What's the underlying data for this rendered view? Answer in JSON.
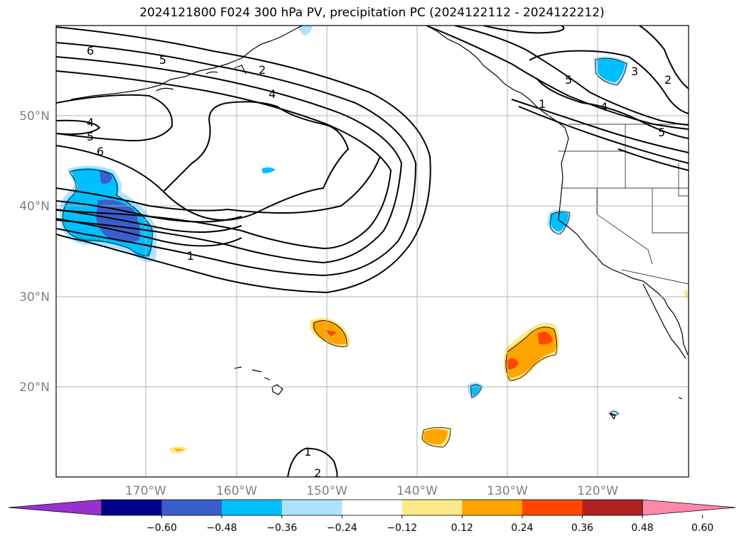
{
  "title": "2024121800 F024 300 hPa PV, precipitation PC (2024122112 - 2024122212)",
  "map": {
    "lon_ticks": [
      "170°W",
      "160°W",
      "150°W",
      "140°W",
      "130°W",
      "120°W"
    ],
    "lat_ticks": [
      "50°N",
      "40°N",
      "30°N",
      "20°N"
    ],
    "pv_contour_labels": [
      "6",
      "5",
      "4",
      "2",
      "4",
      "5",
      "6",
      "1",
      "1",
      "2",
      "3",
      "2",
      "5",
      "4",
      "5",
      "1"
    ],
    "colors": {
      "contour": "#000000",
      "grid": "#b0b0b0",
      "tick_text": "#808080"
    }
  },
  "colorbar": {
    "ticks": [
      "−0.60",
      "−0.48",
      "−0.36",
      "−0.24",
      "−0.12",
      "0.12",
      "0.24",
      "0.36",
      "0.48",
      "0.60"
    ],
    "colors": [
      "#9932cc",
      "#00008b",
      "#3a5fcd",
      "#00bfff",
      "#b0e2ff",
      "#ffffff",
      "#fce98a",
      "#ffa500",
      "#ff4500",
      "#b22222",
      "#ff88aa"
    ]
  }
}
